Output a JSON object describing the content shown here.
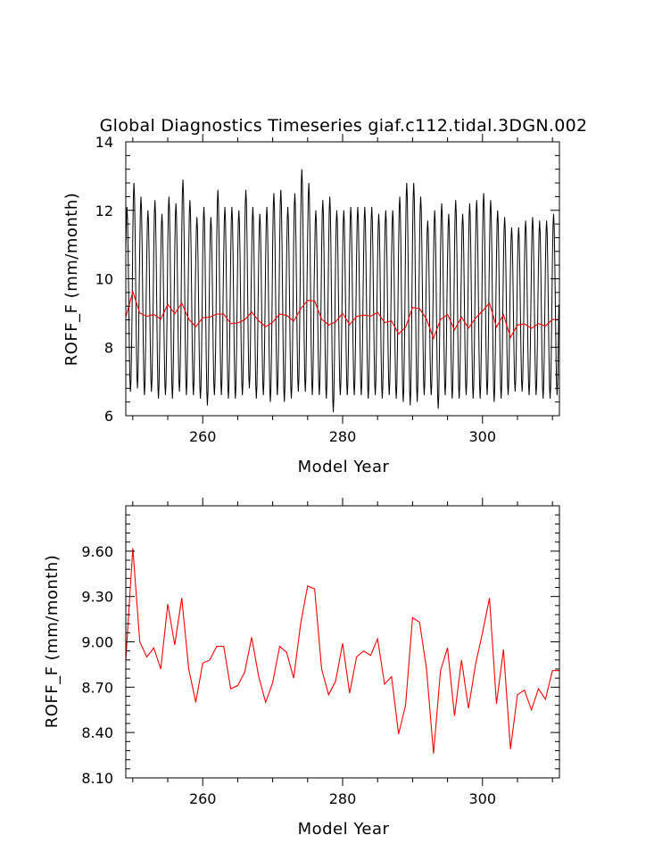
{
  "chart_data": [
    {
      "type": "line",
      "title": "Global Diagnostics Timeseries giaf.c112.tidal.3DGN.002",
      "xlabel": "Model Year",
      "ylabel": "ROFF_F (mm/month)",
      "xlim": [
        249,
        311
      ],
      "ylim": [
        6,
        14
      ],
      "x_ticks": [
        260,
        280,
        300
      ],
      "y_ticks": [
        6,
        8,
        10,
        12,
        14
      ],
      "x_tick_labels": [
        "260",
        "280",
        "300"
      ],
      "y_tick_labels": [
        "6",
        "8",
        "10",
        "12",
        "14"
      ],
      "grid": false,
      "legend": "none",
      "monthly_series": {
        "color": "#000000",
        "start_year": 249,
        "months_per_year": 12,
        "annual_max": [
          12.1,
          12.8,
          12.4,
          12.0,
          12.3,
          11.9,
          12.4,
          12.2,
          12.9,
          12.3,
          11.8,
          12.1,
          11.8,
          12.6,
          12.1,
          12.1,
          12.0,
          12.6,
          12.1,
          11.9,
          12.1,
          12.5,
          12.6,
          12.1,
          12.5,
          13.2,
          12.8,
          12.0,
          12.3,
          12.4,
          12.0,
          12.0,
          12.1,
          12.1,
          12.1,
          12.1,
          11.9,
          12.0,
          12.0,
          12.4,
          12.8,
          12.8,
          12.4,
          11.7,
          12.0,
          12.2,
          11.9,
          12.3,
          11.9,
          12.2,
          12.3,
          12.5,
          12.3,
          12.0,
          11.8,
          11.5,
          11.5,
          11.7,
          11.8,
          11.7,
          11.7,
          11.9
        ],
        "annual_min": [
          6.7,
          6.8,
          6.6,
          6.7,
          6.5,
          6.6,
          6.5,
          6.7,
          6.6,
          6.6,
          6.5,
          6.3,
          6.6,
          6.6,
          6.5,
          6.5,
          6.6,
          6.8,
          6.5,
          6.6,
          6.4,
          6.6,
          6.4,
          6.5,
          6.7,
          6.7,
          6.6,
          6.6,
          6.5,
          6.1,
          6.6,
          6.6,
          6.6,
          6.6,
          6.5,
          6.6,
          6.5,
          6.6,
          6.5,
          6.4,
          6.3,
          6.4,
          6.6,
          6.6,
          6.2,
          6.6,
          6.5,
          6.5,
          6.6,
          6.5,
          6.5,
          6.6,
          6.4,
          6.5,
          6.6,
          6.7,
          6.7,
          6.6,
          6.6,
          6.5,
          6.5,
          6.6
        ]
      },
      "series": [
        {
          "color": "#ff0000",
          "x": [
            249,
            250,
            251,
            252,
            253,
            254,
            255,
            256,
            257,
            258,
            259,
            260,
            261,
            262,
            263,
            264,
            265,
            266,
            267,
            268,
            269,
            270,
            271,
            272,
            273,
            274,
            275,
            276,
            277,
            278,
            279,
            280,
            281,
            282,
            283,
            284,
            285,
            286,
            287,
            288,
            289,
            290,
            291,
            292,
            293,
            294,
            295,
            296,
            297,
            298,
            299,
            300,
            301,
            302,
            303,
            304,
            305,
            306,
            307,
            308,
            309,
            310,
            311
          ],
          "values": [
            8.88,
            9.62,
            9.0,
            8.9,
            8.96,
            8.82,
            9.25,
            8.98,
            9.29,
            8.82,
            8.6,
            8.86,
            8.88,
            8.97,
            8.97,
            8.69,
            8.71,
            8.8,
            9.03,
            8.77,
            8.6,
            8.73,
            8.97,
            8.93,
            8.76,
            9.12,
            9.37,
            9.35,
            8.82,
            8.65,
            8.74,
            8.99,
            8.66,
            8.9,
            8.94,
            8.91,
            9.02,
            8.72,
            8.77,
            8.39,
            8.58,
            9.16,
            9.13,
            8.82,
            8.26,
            8.81,
            8.96,
            8.51,
            8.88,
            8.56,
            8.85,
            9.06,
            9.29,
            8.59,
            8.95,
            8.29,
            8.65,
            8.68,
            8.55,
            8.69,
            8.62,
            8.81,
            8.81
          ]
        }
      ]
    },
    {
      "type": "line",
      "title": "",
      "xlabel": "Model Year",
      "ylabel": "ROFF_F (mm/month)",
      "xlim": [
        249,
        311
      ],
      "ylim": [
        8.1,
        9.9
      ],
      "x_ticks": [
        260,
        280,
        300
      ],
      "y_ticks": [
        8.1,
        8.4,
        8.7,
        9.0,
        9.3,
        9.6
      ],
      "x_tick_labels": [
        "260",
        "280",
        "300"
      ],
      "y_tick_labels": [
        "8.10",
        "8.40",
        "8.70",
        "9.00",
        "9.30",
        "9.60"
      ],
      "grid": false,
      "legend": "none",
      "series": [
        {
          "color": "#ff0000",
          "x": [
            249,
            250,
            251,
            252,
            253,
            254,
            255,
            256,
            257,
            258,
            259,
            260,
            261,
            262,
            263,
            264,
            265,
            266,
            267,
            268,
            269,
            270,
            271,
            272,
            273,
            274,
            275,
            276,
            277,
            278,
            279,
            280,
            281,
            282,
            283,
            284,
            285,
            286,
            287,
            288,
            289,
            290,
            291,
            292,
            293,
            294,
            295,
            296,
            297,
            298,
            299,
            300,
            301,
            302,
            303,
            304,
            305,
            306,
            307,
            308,
            309,
            310,
            311
          ],
          "values": [
            8.88,
            9.62,
            9.0,
            8.9,
            8.96,
            8.82,
            9.25,
            8.98,
            9.29,
            8.82,
            8.6,
            8.86,
            8.88,
            8.97,
            8.97,
            8.69,
            8.71,
            8.8,
            9.03,
            8.77,
            8.6,
            8.73,
            8.97,
            8.93,
            8.76,
            9.12,
            9.37,
            9.35,
            8.82,
            8.65,
            8.74,
            8.99,
            8.66,
            8.9,
            8.94,
            8.91,
            9.02,
            8.72,
            8.77,
            8.39,
            8.58,
            9.16,
            9.13,
            8.82,
            8.26,
            8.81,
            8.96,
            8.51,
            8.88,
            8.56,
            8.85,
            9.06,
            9.29,
            8.59,
            8.95,
            8.29,
            8.65,
            8.68,
            8.55,
            8.69,
            8.62,
            8.81,
            8.81
          ]
        }
      ]
    }
  ]
}
